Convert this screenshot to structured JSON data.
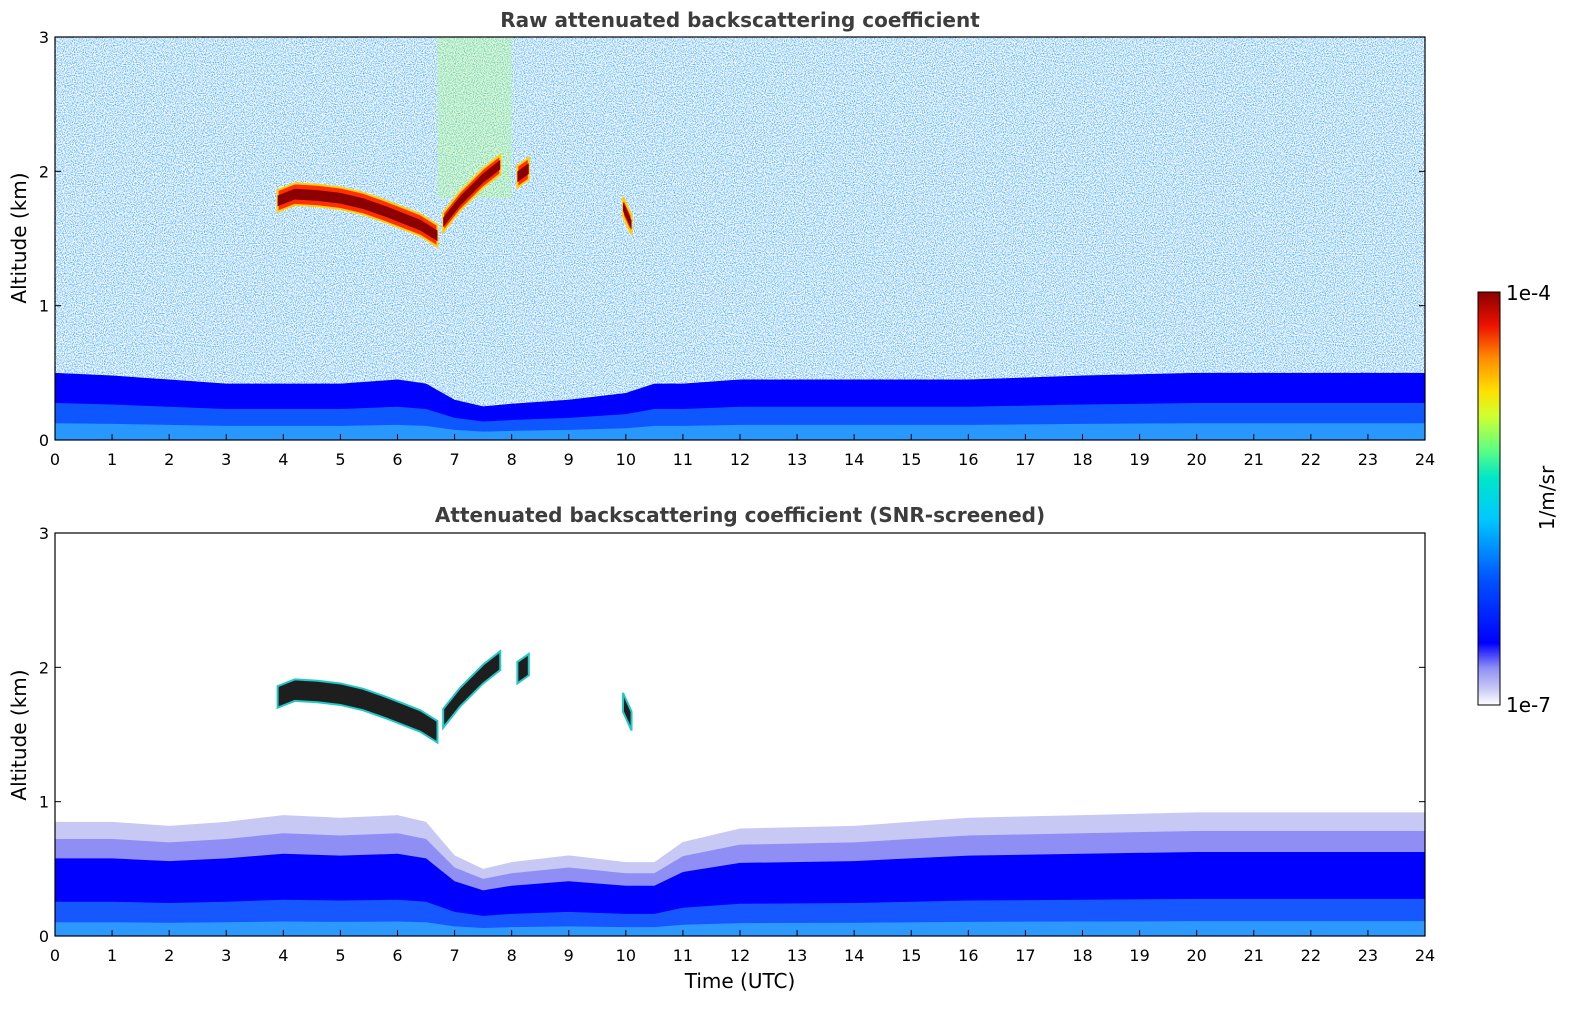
{
  "chart_data": [
    {
      "type": "heatmap",
      "title": "Raw attenuated backscattering coefficient",
      "xlabel": "",
      "ylabel": "Altitude (km)",
      "xlim": [
        0,
        24
      ],
      "ylim": [
        0,
        3
      ],
      "x_ticks": [
        "0",
        "1",
        "2",
        "3",
        "4",
        "5",
        "6",
        "7",
        "8",
        "9",
        "10",
        "11",
        "12",
        "13",
        "14",
        "15",
        "16",
        "17",
        "18",
        "19",
        "20",
        "21",
        "22",
        "23",
        "24"
      ],
      "y_ticks": [
        "0",
        "1",
        "2",
        "3"
      ],
      "screened": false,
      "boundary_layer": [
        [
          0,
          0.5
        ],
        [
          1,
          0.48
        ],
        [
          2,
          0.45
        ],
        [
          3,
          0.42
        ],
        [
          4,
          0.42
        ],
        [
          5,
          0.42
        ],
        [
          6,
          0.45
        ],
        [
          6.5,
          0.42
        ],
        [
          7,
          0.3
        ],
        [
          7.5,
          0.25
        ],
        [
          8,
          0.27
        ],
        [
          9,
          0.3
        ],
        [
          10,
          0.35
        ],
        [
          10.5,
          0.42
        ],
        [
          11,
          0.42
        ],
        [
          12,
          0.45
        ],
        [
          14,
          0.45
        ],
        [
          16,
          0.45
        ],
        [
          18,
          0.48
        ],
        [
          20,
          0.5
        ],
        [
          22,
          0.5
        ],
        [
          24,
          0.5
        ]
      ],
      "cloud_layers": [
        {
          "points": [
            [
              3.9,
              1.78
            ],
            [
              4.2,
              1.83
            ],
            [
              4.6,
              1.82
            ],
            [
              5.0,
              1.8
            ],
            [
              5.4,
              1.76
            ],
            [
              5.8,
              1.7
            ],
            [
              6.1,
              1.65
            ],
            [
              6.4,
              1.6
            ],
            [
              6.7,
              1.52
            ]
          ],
          "thickness": 0.16
        },
        {
          "points": [
            [
              6.8,
              1.62
            ],
            [
              7.1,
              1.78
            ],
            [
              7.5,
              1.95
            ],
            [
              7.8,
              2.05
            ]
          ],
          "thickness": 0.14
        },
        {
          "points": [
            [
              8.1,
              1.96
            ],
            [
              8.3,
              2.02
            ]
          ],
          "thickness": 0.16
        },
        {
          "points": [
            [
              9.95,
              1.74
            ],
            [
              10.1,
              1.6
            ]
          ],
          "thickness": 0.14
        }
      ]
    },
    {
      "type": "heatmap",
      "title": "Attenuated backscattering coefficient (SNR-screened)",
      "xlabel": "Time (UTC)",
      "ylabel": "Altitude (km)",
      "xlim": [
        0,
        24
      ],
      "ylim": [
        0,
        3
      ],
      "x_ticks": [
        "0",
        "1",
        "2",
        "3",
        "4",
        "5",
        "6",
        "7",
        "8",
        "9",
        "10",
        "11",
        "12",
        "13",
        "14",
        "15",
        "16",
        "17",
        "18",
        "19",
        "20",
        "21",
        "22",
        "23",
        "24"
      ],
      "y_ticks": [
        "0",
        "1",
        "2",
        "3"
      ],
      "screened": true,
      "boundary_layer": [
        [
          0,
          0.85
        ],
        [
          1,
          0.85
        ],
        [
          2,
          0.82
        ],
        [
          3,
          0.85
        ],
        [
          4,
          0.9
        ],
        [
          5,
          0.88
        ],
        [
          6,
          0.9
        ],
        [
          6.5,
          0.85
        ],
        [
          7,
          0.6
        ],
        [
          7.5,
          0.5
        ],
        [
          8,
          0.55
        ],
        [
          9,
          0.6
        ],
        [
          10,
          0.55
        ],
        [
          10.5,
          0.55
        ],
        [
          11,
          0.7
        ],
        [
          12,
          0.8
        ],
        [
          14,
          0.82
        ],
        [
          16,
          0.88
        ],
        [
          18,
          0.9
        ],
        [
          20,
          0.92
        ],
        [
          22,
          0.92
        ],
        [
          24,
          0.92
        ]
      ],
      "cloud_layers": [
        {
          "points": [
            [
              3.9,
              1.78
            ],
            [
              4.2,
              1.83
            ],
            [
              4.6,
              1.82
            ],
            [
              5.0,
              1.8
            ],
            [
              5.4,
              1.76
            ],
            [
              5.8,
              1.7
            ],
            [
              6.1,
              1.65
            ],
            [
              6.4,
              1.6
            ],
            [
              6.7,
              1.52
            ]
          ],
          "thickness": 0.16
        },
        {
          "points": [
            [
              6.8,
              1.62
            ],
            [
              7.1,
              1.78
            ],
            [
              7.5,
              1.95
            ],
            [
              7.8,
              2.05
            ]
          ],
          "thickness": 0.14
        },
        {
          "points": [
            [
              8.1,
              1.96
            ],
            [
              8.3,
              2.02
            ]
          ],
          "thickness": 0.16
        },
        {
          "points": [
            [
              9.95,
              1.74
            ],
            [
              10.1,
              1.6
            ]
          ],
          "thickness": 0.14
        }
      ]
    }
  ],
  "colorbar": {
    "min_label": "1e-7",
    "max_label": "1e-4",
    "unit_label": "1/m/sr",
    "colors": [
      "#ffffff",
      "#c8c8f5",
      "#8e8ef5",
      "#0000ff",
      "#0040ff",
      "#0080ff",
      "#00c0ff",
      "#00e0e0",
      "#40ff90",
      "#a0ff40",
      "#e0ff20",
      "#ffe000",
      "#ffa000",
      "#ff5000",
      "#e00000",
      "#8b0000"
    ]
  }
}
